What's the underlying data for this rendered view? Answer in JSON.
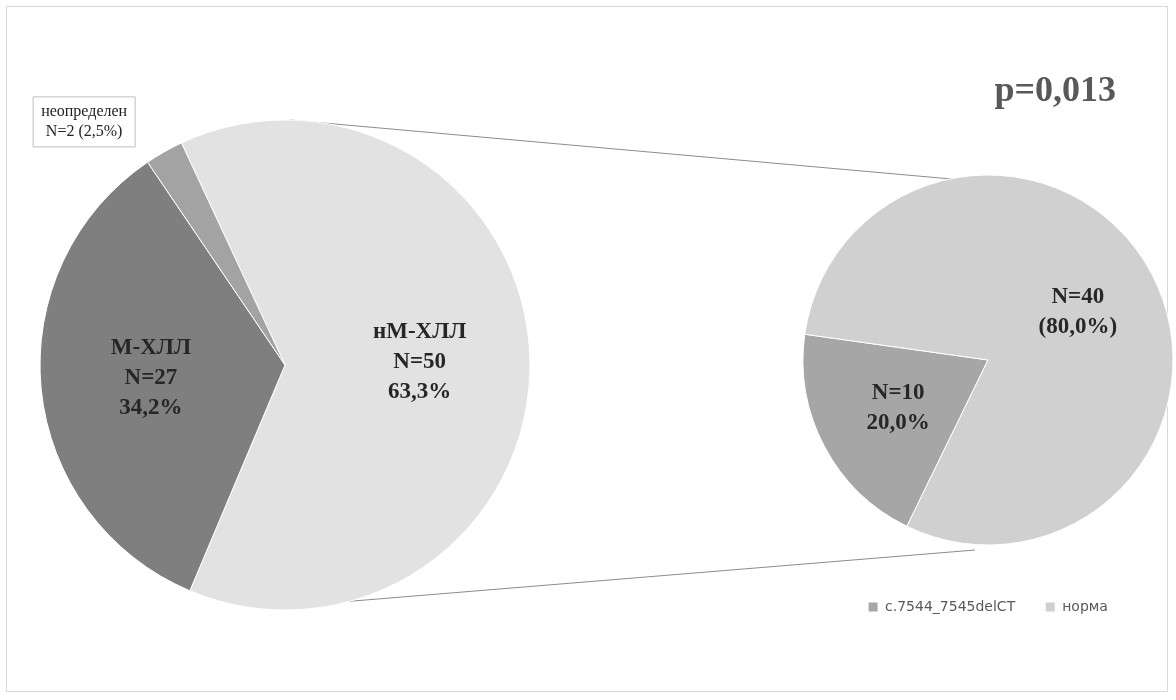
{
  "chart_data": [
    {
      "type": "pie",
      "categories": [
        "нМ-ХЛЛ",
        "М-ХЛЛ",
        "неопределен"
      ],
      "values": [
        50,
        27,
        2
      ],
      "colors": [
        "#e2e2e2",
        "#7f7f7f",
        "#a3a3a3"
      ],
      "value_labels": [
        "N=50\n63,3%",
        "N=27\n34,2%",
        "N=2 (2,5%)"
      ],
      "legend": false
    },
    {
      "type": "pie",
      "categories": [
        "c.7544_7545delCT",
        "норма"
      ],
      "values": [
        10,
        40
      ],
      "colors": [
        "#a6a6a6",
        "#d0d0d0"
      ],
      "value_labels": [
        "N=10\n20,0%",
        "N=40\n(80,0%)"
      ],
      "legend": "bottom",
      "annotations": [
        "p=0,013"
      ]
    }
  ]
}
